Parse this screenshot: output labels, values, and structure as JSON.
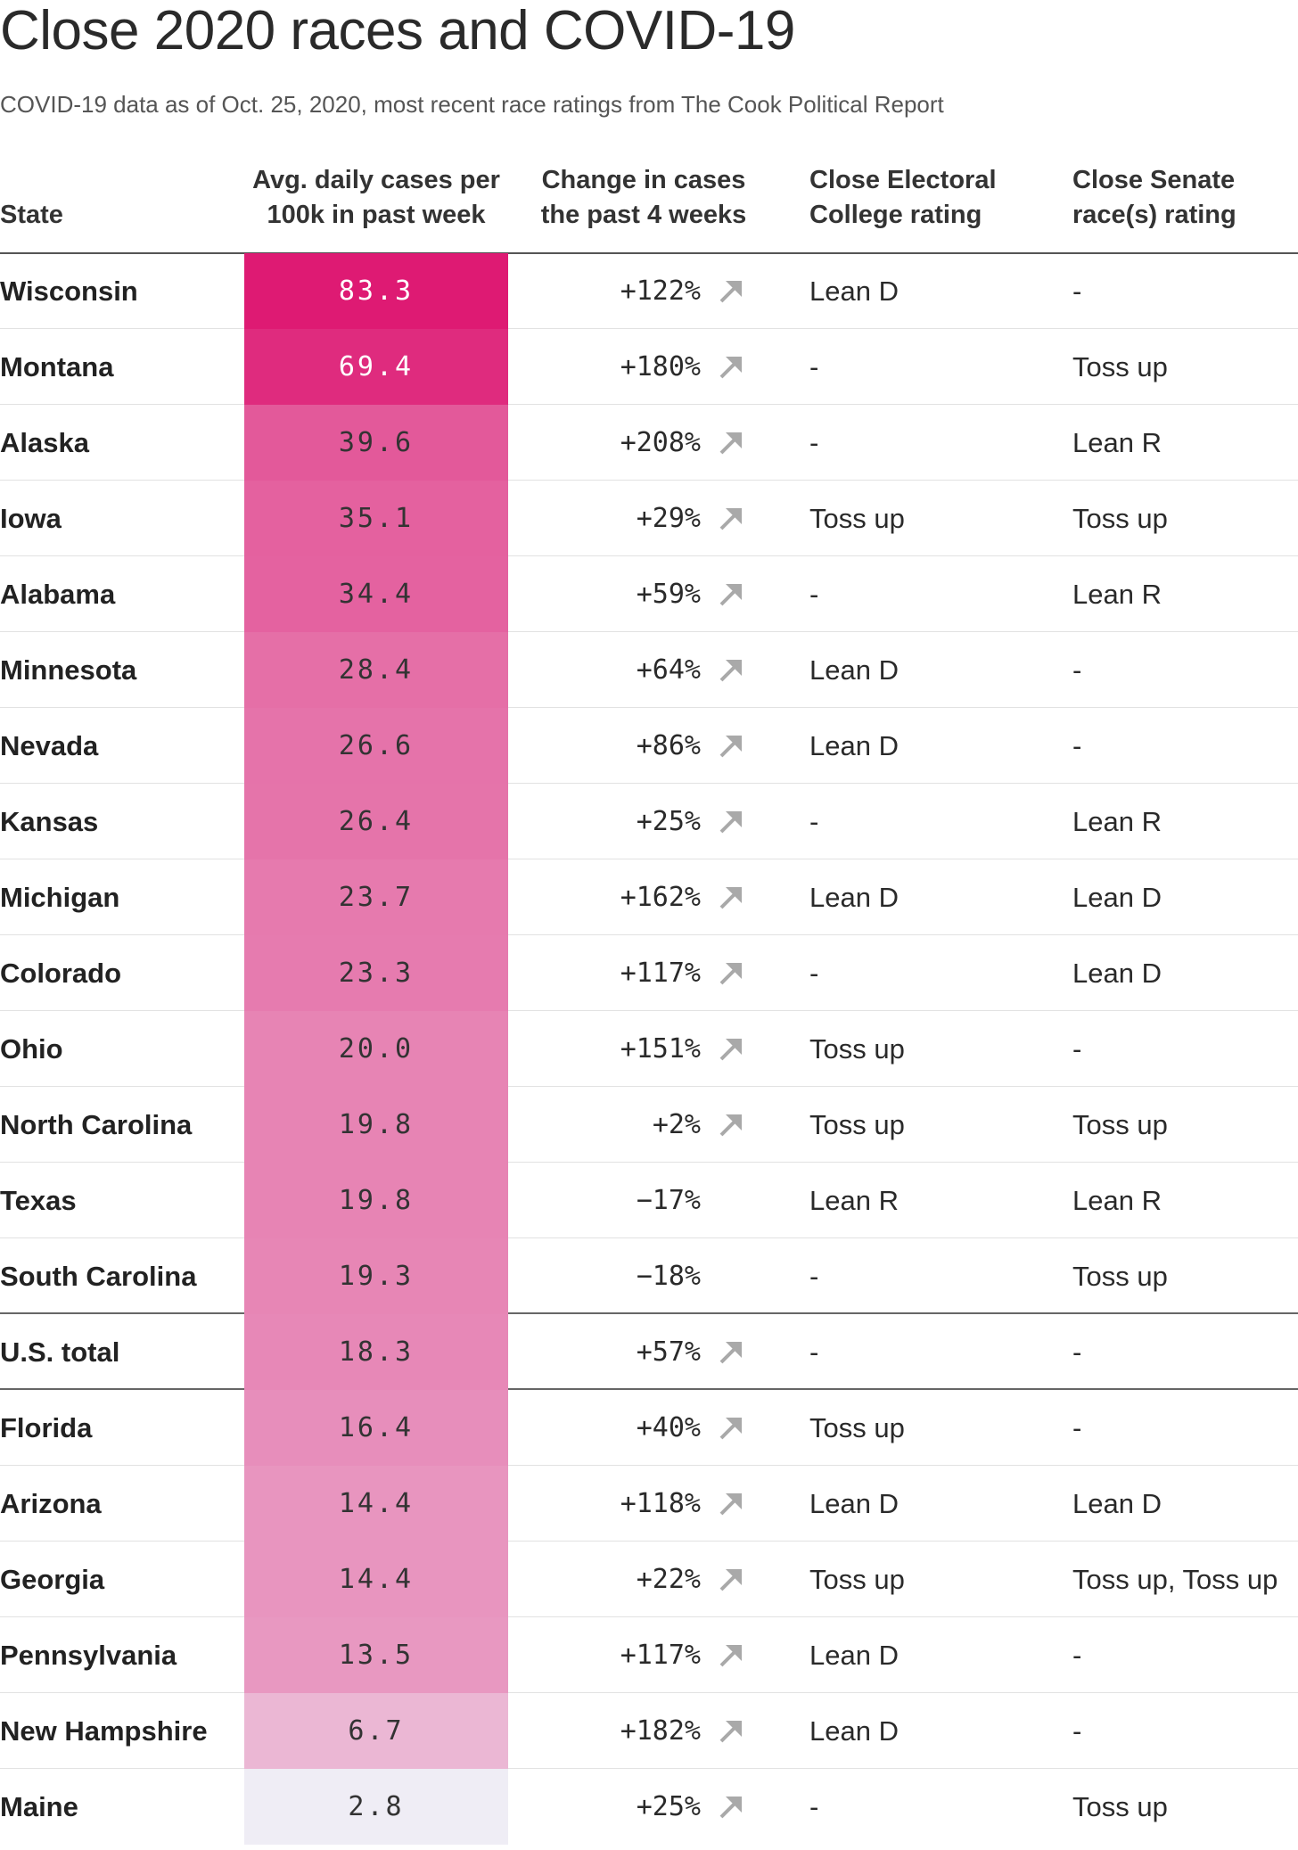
{
  "title": "Close 2020 races and COVID-19",
  "subtitle": "COVID-19 data as of Oct. 25, 2020, most recent race ratings from The Cook Political Report",
  "chart_data": {
    "type": "table",
    "columns": [
      "State",
      "Avg. daily cases per\n100k in past week",
      "Change in cases\nthe past 4 weeks",
      "Close Electoral\nCollege rating",
      "Close Senate\nrace(s) rating"
    ],
    "color_max": "#de1a73",
    "color_min": "#efedf5",
    "rows": [
      {
        "state": "Wisconsin",
        "avg": 83.3,
        "avg_label": "83.3",
        "change": 122,
        "change_label": "+122%",
        "ec": "Lean D",
        "senate": "-"
      },
      {
        "state": "Montana",
        "avg": 69.4,
        "avg_label": "69.4",
        "change": 180,
        "change_label": "+180%",
        "ec": "-",
        "senate": "Toss up"
      },
      {
        "state": "Alaska",
        "avg": 39.6,
        "avg_label": "39.6",
        "change": 208,
        "change_label": "+208%",
        "ec": "-",
        "senate": "Lean R"
      },
      {
        "state": "Iowa",
        "avg": 35.1,
        "avg_label": "35.1",
        "change": 29,
        "change_label": "+29%",
        "ec": "Toss up",
        "senate": "Toss up"
      },
      {
        "state": "Alabama",
        "avg": 34.4,
        "avg_label": "34.4",
        "change": 59,
        "change_label": "+59%",
        "ec": "-",
        "senate": "Lean R"
      },
      {
        "state": "Minnesota",
        "avg": 28.4,
        "avg_label": "28.4",
        "change": 64,
        "change_label": "+64%",
        "ec": "Lean D",
        "senate": "-"
      },
      {
        "state": "Nevada",
        "avg": 26.6,
        "avg_label": "26.6",
        "change": 86,
        "change_label": "+86%",
        "ec": "Lean D",
        "senate": "-"
      },
      {
        "state": "Kansas",
        "avg": 26.4,
        "avg_label": "26.4",
        "change": 25,
        "change_label": "+25%",
        "ec": "-",
        "senate": "Lean R"
      },
      {
        "state": "Michigan",
        "avg": 23.7,
        "avg_label": "23.7",
        "change": 162,
        "change_label": "+162%",
        "ec": "Lean D",
        "senate": "Lean D"
      },
      {
        "state": "Colorado",
        "avg": 23.3,
        "avg_label": "23.3",
        "change": 117,
        "change_label": "+117%",
        "ec": "-",
        "senate": "Lean D"
      },
      {
        "state": "Ohio",
        "avg": 20.0,
        "avg_label": "20.0",
        "change": 151,
        "change_label": "+151%",
        "ec": "Toss up",
        "senate": "-"
      },
      {
        "state": "North Carolina",
        "avg": 19.8,
        "avg_label": "19.8",
        "change": 2,
        "change_label": "+2%",
        "ec": "Toss up",
        "senate": "Toss up"
      },
      {
        "state": "Texas",
        "avg": 19.8,
        "avg_label": "19.8",
        "change": -17,
        "change_label": "−17%",
        "ec": "Lean R",
        "senate": "Lean R"
      },
      {
        "state": "South Carolina",
        "avg": 19.3,
        "avg_label": "19.3",
        "change": -18,
        "change_label": "−18%",
        "ec": "-",
        "senate": "Toss up"
      },
      {
        "state": "U.S. total",
        "avg": 18.3,
        "avg_label": "18.3",
        "change": 57,
        "change_label": "+57%",
        "ec": "-",
        "senate": "-"
      },
      {
        "state": "Florida",
        "avg": 16.4,
        "avg_label": "16.4",
        "change": 40,
        "change_label": "+40%",
        "ec": "Toss up",
        "senate": "-"
      },
      {
        "state": "Arizona",
        "avg": 14.4,
        "avg_label": "14.4",
        "change": 118,
        "change_label": "+118%",
        "ec": "Lean D",
        "senate": "Lean D"
      },
      {
        "state": "Georgia",
        "avg": 14.4,
        "avg_label": "14.4",
        "change": 22,
        "change_label": "+22%",
        "ec": "Toss up",
        "senate": "Toss up, Toss up"
      },
      {
        "state": "Pennsylvania",
        "avg": 13.5,
        "avg_label": "13.5",
        "change": 117,
        "change_label": "+117%",
        "ec": "Lean D",
        "senate": "-"
      },
      {
        "state": "New Hampshire",
        "avg": 6.7,
        "avg_label": "6.7",
        "change": 182,
        "change_label": "+182%",
        "ec": "Lean D",
        "senate": "-"
      },
      {
        "state": "Maine",
        "avg": 2.8,
        "avg_label": "2.8",
        "change": 25,
        "change_label": "+25%",
        "ec": "-",
        "senate": "Toss up"
      }
    ]
  }
}
